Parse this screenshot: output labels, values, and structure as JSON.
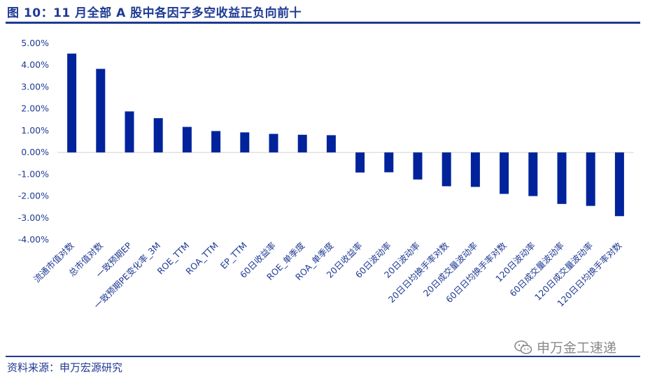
{
  "header": {
    "title": "图 10：11 月全部 A 股中各因子多空收益正负向前十"
  },
  "footer": {
    "source": "资料来源：申万宏源研究",
    "watermark": "申万金工速递"
  },
  "colors": {
    "bar": "#00239c",
    "accent": "#1f3a93",
    "axis": "#d0d0d0"
  },
  "chart_data": {
    "type": "bar",
    "title": "",
    "xlabel": "",
    "ylabel": "",
    "ylim": [
      -0.04,
      0.05
    ],
    "y_tick_labels": [
      "5.00%",
      "4.00%",
      "3.00%",
      "2.00%",
      "1.00%",
      "0.00%",
      "-1.00%",
      "-2.00%",
      "-3.00%",
      "-4.00%"
    ],
    "y_tick_values": [
      0.05,
      0.04,
      0.03,
      0.02,
      0.01,
      0.0,
      -0.01,
      -0.02,
      -0.03,
      -0.04
    ],
    "grid": false,
    "legend": "none",
    "categories": [
      "流通市值对数",
      "总市值对数",
      "一致预期EP",
      "一致预期PE变化率_3M",
      "ROE_TTM",
      "ROA_TTM",
      "EP_TTM",
      "60日收益率",
      "ROE_单季度",
      "ROA_单季度",
      "20日收益率",
      "60日波动率",
      "20日波动率",
      "20日日均换手率对数",
      "20日成交量波动率",
      "60日日均换手率对数",
      "120日波动率",
      "60日成交量波动率",
      "120日成交量波动率",
      "120日日均换手率对数"
    ],
    "values": [
      0.0453,
      0.0383,
      0.0188,
      0.0157,
      0.0117,
      0.0098,
      0.0092,
      0.0085,
      0.0081,
      0.0079,
      -0.0092,
      -0.0091,
      -0.0124,
      -0.0155,
      -0.0158,
      -0.019,
      -0.02,
      -0.0236,
      -0.0245,
      -0.0292
    ]
  }
}
